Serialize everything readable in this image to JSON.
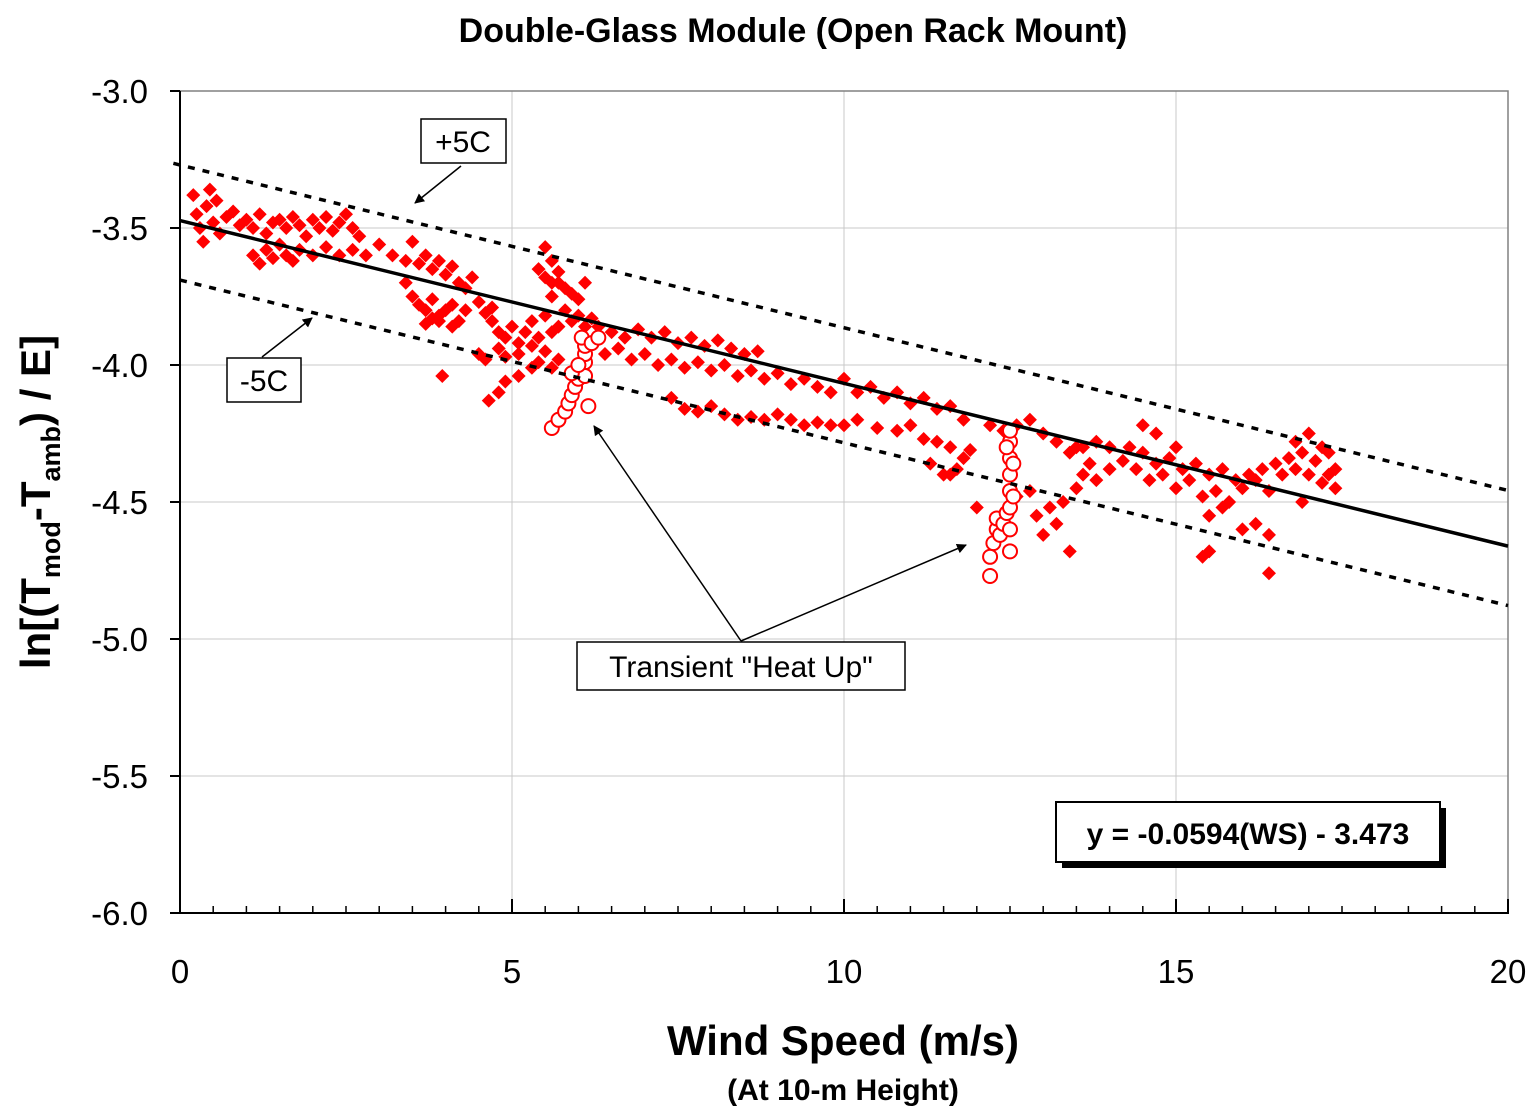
{
  "chart_data": {
    "type": "scatter",
    "title": "Double-Glass Module  (Open Rack Mount)",
    "xlabel": "Wind Speed (m/s)",
    "xlabel_sub": "(At 10-m Height)",
    "ylabel": {
      "prefix": "ln[(T",
      "sub1": "mod",
      "mid": "-T",
      "sub2": "amb",
      "suffix": ") / E]"
    },
    "xlim": [
      0,
      20
    ],
    "ylim": [
      -6.0,
      -3.0
    ],
    "x_ticks": [
      "0",
      "5",
      "10",
      "15",
      "20"
    ],
    "x_tick_values": [
      0,
      5,
      10,
      15,
      20
    ],
    "y_ticks": [
      "-3.0",
      "-3.5",
      "-4.0",
      "-4.5",
      "-5.0",
      "-5.5",
      "-6.0"
    ],
    "y_tick_values": [
      -3.0,
      -3.5,
      -4.0,
      -4.5,
      -5.0,
      -5.5,
      -6.0
    ],
    "grid": true,
    "colors": {
      "measured": "#ff0000",
      "fit": "#000000",
      "band": "#000000"
    },
    "fit": {
      "slope": -0.0594,
      "intercept": -3.473,
      "x_range": [
        0,
        20
      ]
    },
    "bands": [
      {
        "label": "+5C",
        "intercept": -3.27,
        "slope": -0.0594,
        "x_range": [
          -0.1,
          20
        ]
      },
      {
        "label": "-5C",
        "intercept": -3.69,
        "slope": -0.0594,
        "x_range": [
          0,
          20
        ]
      }
    ],
    "equation_label": "y = -0.0594(WS) - 3.473",
    "annotation_heat_up": "Transient \"Heat Up\"",
    "series": [
      {
        "name": "",
        "marker": "diamond-filled",
        "points": [
          [
            0.2,
            -3.38
          ],
          [
            0.25,
            -3.45
          ],
          [
            0.3,
            -3.5
          ],
          [
            0.35,
            -3.55
          ],
          [
            0.4,
            -3.42
          ],
          [
            0.45,
            -3.36
          ],
          [
            0.5,
            -3.48
          ],
          [
            0.55,
            -3.4
          ],
          [
            0.6,
            -3.52
          ],
          [
            0.7,
            -3.46
          ],
          [
            0.8,
            -3.44
          ],
          [
            0.9,
            -3.49
          ],
          [
            1.0,
            -3.47
          ],
          [
            1.1,
            -3.5
          ],
          [
            1.2,
            -3.45
          ],
          [
            1.3,
            -3.52
          ],
          [
            1.4,
            -3.48
          ],
          [
            1.5,
            -3.47
          ],
          [
            1.6,
            -3.5
          ],
          [
            1.7,
            -3.46
          ],
          [
            1.8,
            -3.49
          ],
          [
            1.9,
            -3.53
          ],
          [
            2.0,
            -3.47
          ],
          [
            2.1,
            -3.5
          ],
          [
            2.2,
            -3.46
          ],
          [
            2.3,
            -3.51
          ],
          [
            2.4,
            -3.48
          ],
          [
            2.5,
            -3.45
          ],
          [
            2.6,
            -3.5
          ],
          [
            2.7,
            -3.53
          ],
          [
            1.1,
            -3.6
          ],
          [
            1.2,
            -3.63
          ],
          [
            1.3,
            -3.58
          ],
          [
            1.4,
            -3.61
          ],
          [
            1.5,
            -3.56
          ],
          [
            1.6,
            -3.6
          ],
          [
            1.7,
            -3.62
          ],
          [
            1.8,
            -3.58
          ],
          [
            2.0,
            -3.6
          ],
          [
            2.2,
            -3.57
          ],
          [
            2.4,
            -3.6
          ],
          [
            2.6,
            -3.58
          ],
          [
            2.8,
            -3.6
          ],
          [
            3.0,
            -3.56
          ],
          [
            3.2,
            -3.6
          ],
          [
            3.4,
            -3.62
          ],
          [
            3.5,
            -3.55
          ],
          [
            3.6,
            -3.63
          ],
          [
            3.7,
            -3.6
          ],
          [
            3.8,
            -3.65
          ],
          [
            3.9,
            -3.62
          ],
          [
            4.0,
            -3.67
          ],
          [
            4.1,
            -3.64
          ],
          [
            4.2,
            -3.7
          ],
          [
            4.3,
            -3.72
          ],
          [
            4.4,
            -3.68
          ],
          [
            3.4,
            -3.7
          ],
          [
            3.5,
            -3.75
          ],
          [
            3.6,
            -3.78
          ],
          [
            3.7,
            -3.8
          ],
          [
            3.8,
            -3.76
          ],
          [
            3.9,
            -3.82
          ],
          [
            4.0,
            -3.8
          ],
          [
            4.1,
            -3.78
          ],
          [
            4.2,
            -3.84
          ],
          [
            4.3,
            -3.8
          ],
          [
            4.5,
            -3.77
          ],
          [
            4.6,
            -3.81
          ],
          [
            4.7,
            -3.79
          ],
          [
            3.7,
            -3.85
          ],
          [
            3.9,
            -3.84
          ],
          [
            4.1,
            -3.86
          ],
          [
            3.8,
            -3.83
          ],
          [
            3.95,
            -4.04
          ],
          [
            4.65,
            -4.13
          ],
          [
            4.8,
            -4.1
          ],
          [
            4.9,
            -4.06
          ],
          [
            5.1,
            -4.04
          ],
          [
            5.3,
            -4.01
          ],
          [
            4.7,
            -3.84
          ],
          [
            4.8,
            -3.88
          ],
          [
            4.9,
            -3.9
          ],
          [
            5.0,
            -3.86
          ],
          [
            5.1,
            -3.92
          ],
          [
            5.2,
            -3.88
          ],
          [
            5.3,
            -3.84
          ],
          [
            5.4,
            -3.9
          ],
          [
            5.5,
            -3.82
          ],
          [
            5.6,
            -3.88
          ],
          [
            5.7,
            -3.86
          ],
          [
            5.8,
            -3.8
          ],
          [
            5.9,
            -3.84
          ],
          [
            6.0,
            -3.82
          ],
          [
            6.1,
            -3.86
          ],
          [
            6.2,
            -3.83
          ],
          [
            5.5,
            -3.57
          ],
          [
            5.6,
            -3.62
          ],
          [
            5.4,
            -3.65
          ],
          [
            5.5,
            -3.68
          ],
          [
            5.7,
            -3.7
          ],
          [
            5.8,
            -3.72
          ],
          [
            5.9,
            -3.74
          ],
          [
            6.0,
            -3.76
          ],
          [
            5.6,
            -3.75
          ],
          [
            6.1,
            -3.7
          ],
          [
            5.7,
            -3.66
          ],
          [
            5.6,
            -3.7
          ],
          [
            4.5,
            -3.96
          ],
          [
            4.6,
            -3.98
          ],
          [
            4.8,
            -3.94
          ],
          [
            4.9,
            -3.97
          ],
          [
            5.1,
            -3.96
          ],
          [
            5.3,
            -3.93
          ],
          [
            5.5,
            -3.95
          ],
          [
            5.4,
            -3.99
          ],
          [
            5.6,
            -4.01
          ],
          [
            5.7,
            -3.98
          ],
          [
            6.3,
            -3.86
          ],
          [
            6.5,
            -3.88
          ],
          [
            6.7,
            -3.9
          ],
          [
            6.9,
            -3.87
          ],
          [
            7.1,
            -3.9
          ],
          [
            7.3,
            -3.88
          ],
          [
            7.5,
            -3.92
          ],
          [
            7.7,
            -3.9
          ],
          [
            7.9,
            -3.93
          ],
          [
            8.1,
            -3.91
          ],
          [
            8.3,
            -3.94
          ],
          [
            8.5,
            -3.96
          ],
          [
            8.7,
            -3.95
          ],
          [
            6.4,
            -3.96
          ],
          [
            6.6,
            -3.94
          ],
          [
            6.8,
            -3.98
          ],
          [
            7.0,
            -3.96
          ],
          [
            7.2,
            -4.0
          ],
          [
            7.4,
            -3.98
          ],
          [
            7.6,
            -4.01
          ],
          [
            7.8,
            -3.99
          ],
          [
            8.0,
            -4.02
          ],
          [
            8.2,
            -4.0
          ],
          [
            8.4,
            -4.04
          ],
          [
            8.6,
            -4.02
          ],
          [
            8.8,
            -4.05
          ],
          [
            9.0,
            -4.03
          ],
          [
            9.2,
            -4.07
          ],
          [
            9.4,
            -4.05
          ],
          [
            9.6,
            -4.08
          ],
          [
            9.8,
            -4.1
          ],
          [
            7.4,
            -4.12
          ],
          [
            7.6,
            -4.16
          ],
          [
            7.8,
            -4.17
          ],
          [
            8.0,
            -4.15
          ],
          [
            8.2,
            -4.18
          ],
          [
            8.4,
            -4.2
          ],
          [
            8.6,
            -4.19
          ],
          [
            8.8,
            -4.2
          ],
          [
            9.0,
            -4.18
          ],
          [
            9.2,
            -4.2
          ],
          [
            9.4,
            -4.22
          ],
          [
            9.6,
            -4.21
          ],
          [
            9.8,
            -4.22
          ],
          [
            10.0,
            -4.05
          ],
          [
            10.2,
            -4.1
          ],
          [
            10.4,
            -4.08
          ],
          [
            10.6,
            -4.12
          ],
          [
            10.8,
            -4.1
          ],
          [
            11.0,
            -4.14
          ],
          [
            11.2,
            -4.12
          ],
          [
            11.4,
            -4.16
          ],
          [
            11.6,
            -4.15
          ],
          [
            10.0,
            -4.22
          ],
          [
            10.2,
            -4.2
          ],
          [
            10.5,
            -4.23
          ],
          [
            10.8,
            -4.24
          ],
          [
            11.0,
            -4.22
          ],
          [
            11.2,
            -4.27
          ],
          [
            11.4,
            -4.28
          ],
          [
            11.6,
            -4.3
          ],
          [
            11.8,
            -4.34
          ],
          [
            11.9,
            -4.31
          ],
          [
            11.7,
            -4.38
          ],
          [
            11.3,
            -4.36
          ],
          [
            11.5,
            -4.4
          ],
          [
            11.8,
            -4.2
          ],
          [
            12.2,
            -4.22
          ],
          [
            12.4,
            -4.24
          ],
          [
            12.6,
            -4.22
          ],
          [
            12.8,
            -4.2
          ],
          [
            13.0,
            -4.25
          ],
          [
            13.2,
            -4.28
          ],
          [
            13.4,
            -4.32
          ],
          [
            13.6,
            -4.3
          ],
          [
            13.8,
            -4.28
          ],
          [
            14.0,
            -4.3
          ],
          [
            12.0,
            -4.52
          ],
          [
            12.5,
            -4.6
          ],
          [
            12.9,
            -4.55
          ],
          [
            13.1,
            -4.52
          ],
          [
            13.3,
            -4.5
          ],
          [
            13.5,
            -4.45
          ],
          [
            13.6,
            -4.4
          ],
          [
            13.7,
            -4.36
          ],
          [
            12.8,
            -4.46
          ],
          [
            12.6,
            -4.48
          ],
          [
            13.2,
            -4.58
          ],
          [
            13.0,
            -4.62
          ],
          [
            13.4,
            -4.68
          ],
          [
            13.8,
            -4.42
          ],
          [
            14.0,
            -4.38
          ],
          [
            14.2,
            -4.35
          ],
          [
            14.3,
            -4.3
          ],
          [
            14.5,
            -4.32
          ],
          [
            14.7,
            -4.36
          ],
          [
            14.9,
            -4.34
          ],
          [
            15.1,
            -4.38
          ],
          [
            15.3,
            -4.36
          ],
          [
            15.5,
            -4.4
          ],
          [
            15.7,
            -4.38
          ],
          [
            15.9,
            -4.42
          ],
          [
            16.1,
            -4.4
          ],
          [
            16.3,
            -4.38
          ],
          [
            16.5,
            -4.36
          ],
          [
            16.7,
            -4.34
          ],
          [
            16.9,
            -4.32
          ],
          [
            17.1,
            -4.35
          ],
          [
            17.3,
            -4.4
          ],
          [
            17.4,
            -4.45
          ],
          [
            14.4,
            -4.38
          ],
          [
            14.6,
            -4.42
          ],
          [
            14.8,
            -4.4
          ],
          [
            15.0,
            -4.45
          ],
          [
            15.2,
            -4.42
          ],
          [
            15.4,
            -4.48
          ],
          [
            15.6,
            -4.46
          ],
          [
            15.8,
            -4.5
          ],
          [
            16.0,
            -4.45
          ],
          [
            16.2,
            -4.42
          ],
          [
            16.4,
            -4.46
          ],
          [
            16.6,
            -4.4
          ],
          [
            16.8,
            -4.38
          ],
          [
            17.0,
            -4.4
          ],
          [
            17.2,
            -4.43
          ],
          [
            17.4,
            -4.38
          ],
          [
            14.5,
            -4.22
          ],
          [
            14.7,
            -4.25
          ],
          [
            15.0,
            -4.3
          ],
          [
            16.8,
            -4.28
          ],
          [
            17.0,
            -4.25
          ],
          [
            17.2,
            -4.3
          ],
          [
            17.3,
            -4.32
          ],
          [
            15.5,
            -4.55
          ],
          [
            15.7,
            -4.52
          ],
          [
            16.0,
            -4.6
          ],
          [
            16.2,
            -4.58
          ],
          [
            15.4,
            -4.7
          ],
          [
            15.5,
            -4.68
          ],
          [
            16.4,
            -4.76
          ],
          [
            16.4,
            -4.62
          ],
          [
            16.9,
            -4.5
          ],
          [
            13.5,
            -4.3
          ],
          [
            11.6,
            -4.4
          ]
        ]
      },
      {
        "name": "",
        "marker": "circle-open",
        "points": [
          [
            5.6,
            -4.23
          ],
          [
            5.7,
            -4.2
          ],
          [
            5.8,
            -4.17
          ],
          [
            5.85,
            -4.14
          ],
          [
            5.9,
            -4.11
          ],
          [
            5.95,
            -4.08
          ],
          [
            6.0,
            -4.05
          ],
          [
            6.05,
            -4.02
          ],
          [
            6.1,
            -3.99
          ],
          [
            6.1,
            -3.96
          ],
          [
            6.1,
            -3.93
          ],
          [
            6.05,
            -3.9
          ],
          [
            6.1,
            -4.04
          ],
          [
            6.15,
            -4.15
          ],
          [
            6.2,
            -3.92
          ],
          [
            6.3,
            -3.9
          ],
          [
            5.9,
            -4.03
          ],
          [
            6.0,
            -4.0
          ],
          [
            12.2,
            -4.77
          ],
          [
            12.2,
            -4.7
          ],
          [
            12.25,
            -4.65
          ],
          [
            12.3,
            -4.6
          ],
          [
            12.3,
            -4.56
          ],
          [
            12.35,
            -4.62
          ],
          [
            12.4,
            -4.58
          ],
          [
            12.45,
            -4.54
          ],
          [
            12.5,
            -4.68
          ],
          [
            12.5,
            -4.6
          ],
          [
            12.5,
            -4.52
          ],
          [
            12.5,
            -4.46
          ],
          [
            12.5,
            -4.4
          ],
          [
            12.5,
            -4.34
          ],
          [
            12.5,
            -4.28
          ],
          [
            12.5,
            -4.24
          ],
          [
            12.55,
            -4.48
          ],
          [
            12.55,
            -4.36
          ],
          [
            12.45,
            -4.3
          ]
        ]
      }
    ]
  }
}
